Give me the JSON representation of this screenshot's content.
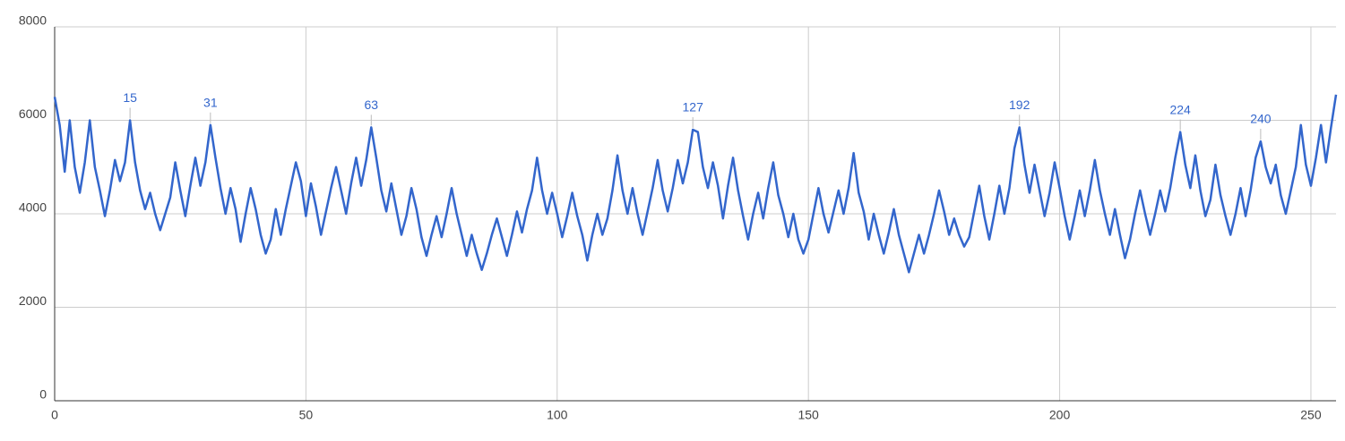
{
  "chart_data": {
    "type": "line",
    "color": "#3366cc",
    "grid": true,
    "xlim": [
      0,
      255
    ],
    "xticks": [
      0,
      50,
      100,
      150,
      200,
      250
    ],
    "ylim": [
      0,
      8000
    ],
    "yticks": [
      0,
      2000,
      4000,
      6000,
      8000
    ],
    "annotations": [
      15,
      31,
      63,
      127,
      192,
      224,
      240
    ],
    "x": [
      0,
      1,
      2,
      3,
      4,
      5,
      6,
      7,
      8,
      9,
      10,
      11,
      12,
      13,
      14,
      15,
      16,
      17,
      18,
      19,
      20,
      21,
      22,
      23,
      24,
      25,
      26,
      27,
      28,
      29,
      30,
      31,
      32,
      33,
      34,
      35,
      36,
      37,
      38,
      39,
      40,
      41,
      42,
      43,
      44,
      45,
      46,
      47,
      48,
      49,
      50,
      51,
      52,
      53,
      54,
      55,
      56,
      57,
      58,
      59,
      60,
      61,
      62,
      63,
      64,
      65,
      66,
      67,
      68,
      69,
      70,
      71,
      72,
      73,
      74,
      75,
      76,
      77,
      78,
      79,
      80,
      81,
      82,
      83,
      84,
      85,
      86,
      87,
      88,
      89,
      90,
      91,
      92,
      93,
      94,
      95,
      96,
      97,
      98,
      99,
      100,
      101,
      102,
      103,
      104,
      105,
      106,
      107,
      108,
      109,
      110,
      111,
      112,
      113,
      114,
      115,
      116,
      117,
      118,
      119,
      120,
      121,
      122,
      123,
      124,
      125,
      126,
      127,
      128,
      129,
      130,
      131,
      132,
      133,
      134,
      135,
      136,
      137,
      138,
      139,
      140,
      141,
      142,
      143,
      144,
      145,
      146,
      147,
      148,
      149,
      150,
      151,
      152,
      153,
      154,
      155,
      156,
      157,
      158,
      159,
      160,
      161,
      162,
      163,
      164,
      165,
      166,
      167,
      168,
      169,
      170,
      171,
      172,
      173,
      174,
      175,
      176,
      177,
      178,
      179,
      180,
      181,
      182,
      183,
      184,
      185,
      186,
      187,
      188,
      189,
      190,
      191,
      192,
      193,
      194,
      195,
      196,
      197,
      198,
      199,
      200,
      201,
      202,
      203,
      204,
      205,
      206,
      207,
      208,
      209,
      210,
      211,
      212,
      213,
      214,
      215,
      216,
      217,
      218,
      219,
      220,
      221,
      222,
      223,
      224,
      225,
      226,
      227,
      228,
      229,
      230,
      231,
      232,
      233,
      234,
      235,
      236,
      237,
      238,
      239,
      240,
      241,
      242,
      243,
      244,
      245,
      246,
      247,
      248,
      249,
      250,
      251,
      252,
      253,
      254,
      255
    ],
    "values": [
      6500,
      5900,
      4900,
      6000,
      5000,
      4450,
      5100,
      6000,
      5000,
      4500,
      3950,
      4500,
      5150,
      4700,
      5100,
      6000,
      5100,
      4500,
      4100,
      4450,
      4000,
      3650,
      4000,
      4350,
      5100,
      4500,
      3950,
      4600,
      5200,
      4600,
      5100,
      5900,
      5200,
      4550,
      4000,
      4550,
      4100,
      3400,
      4000,
      4550,
      4100,
      3550,
      3150,
      3450,
      4100,
      3550,
      4100,
      4600,
      5100,
      4700,
      3950,
      4650,
      4150,
      3550,
      4050,
      4550,
      5000,
      4500,
      4000,
      4650,
      5200,
      4600,
      5150,
      5850,
      5200,
      4500,
      4050,
      4650,
      4100,
      3550,
      3950,
      4550,
      4100,
      3500,
      3100,
      3550,
      3950,
      3500,
      4000,
      4550,
      4000,
      3550,
      3100,
      3550,
      3150,
      2800,
      3150,
      3550,
      3900,
      3500,
      3100,
      3550,
      4050,
      3600,
      4100,
      4500,
      5200,
      4500,
      4000,
      4450,
      4000,
      3500,
      3950,
      4450,
      3950,
      3550,
      3000,
      3550,
      4000,
      3550,
      3900,
      4500,
      5250,
      4500,
      4000,
      4550,
      4000,
      3550,
      4050,
      4550,
      5150,
      4500,
      4050,
      4550,
      5150,
      4650,
      5100,
      5800,
      5750,
      5000,
      4550,
      5100,
      4600,
      3900,
      4600,
      5200,
      4500,
      3950,
      3450,
      4000,
      4450,
      3900,
      4550,
      5100,
      4400,
      4000,
      3500,
      4000,
      3450,
      3150,
      3450,
      4000,
      4550,
      4000,
      3600,
      4050,
      4500,
      4000,
      4550,
      5300,
      4450,
      4050,
      3450,
      4000,
      3550,
      3150,
      3600,
      4100,
      3550,
      3150,
      2750,
      3150,
      3550,
      3150,
      3550,
      4000,
      4500,
      4050,
      3550,
      3900,
      3550,
      3300,
      3500,
      4050,
      4600,
      3950,
      3450,
      4000,
      4600,
      4000,
      4550,
      5400,
      5850,
      5050,
      4450,
      5050,
      4500,
      3950,
      4450,
      5100,
      4550,
      3950,
      3450,
      3950,
      4500,
      3950,
      4500,
      5150,
      4500,
      4000,
      3550,
      4100,
      3550,
      3050,
      3450,
      4000,
      4500,
      4000,
      3550,
      4000,
      4500,
      4050,
      4550,
      5200,
      5750,
      5050,
      4550,
      5250,
      4500,
      3950,
      4300,
      5050,
      4400,
      3950,
      3550,
      4000,
      4550,
      3950,
      4500,
      5200,
      5550,
      5000,
      4650,
      5050,
      4400,
      4000,
      4500,
      5000,
      5900,
      5050,
      4600,
      5200,
      5900,
      5100,
      5850,
      6550
    ]
  }
}
